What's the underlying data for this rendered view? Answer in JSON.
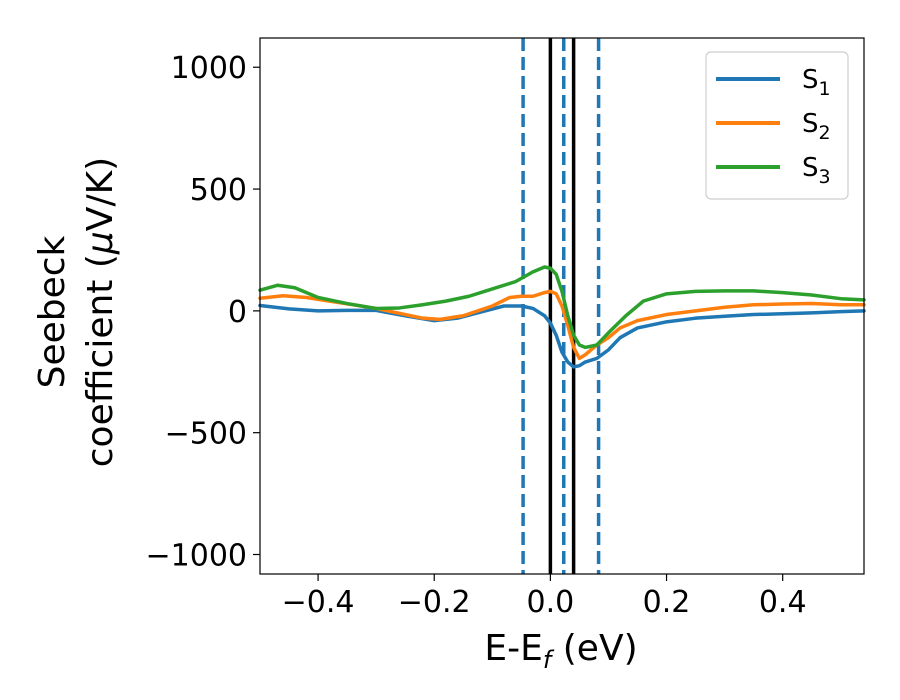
{
  "chart_data": {
    "type": "line",
    "xlabel": "E-E",
    "xlabel_sub": "f",
    "xlabel_unit": " (eV)",
    "ylabel_line1": "Seebeck",
    "ylabel_line2_pre": "coefficient  (",
    "ylabel_mu": "μ",
    "ylabel_line2_post": "V/K)",
    "xlim": [
      -0.5,
      0.54
    ],
    "ylim": [
      -1080,
      1120
    ],
    "xticks": [
      -0.4,
      -0.2,
      0.0,
      0.2,
      0.4
    ],
    "xtick_labels": [
      "−0.4",
      "−0.2",
      "0.0",
      "0.2",
      "0.4"
    ],
    "yticks": [
      -1000,
      -500,
      0,
      500,
      1000
    ],
    "ytick_labels": [
      "−1000",
      "−500",
      "0",
      "500",
      "1000"
    ],
    "grid": false,
    "legend_position": "top-right",
    "vlines_solid": [
      0.0,
      0.04
    ],
    "vlines_dashed": [
      -0.047,
      0.023,
      0.083
    ],
    "vline_solid_color": "#000000",
    "vline_dashed_color": "#1f77b4",
    "series": [
      {
        "name": "S",
        "sub": "1",
        "color": "#1f77b4",
        "points": [
          [
            -0.5,
            22
          ],
          [
            -0.45,
            8
          ],
          [
            -0.4,
            0
          ],
          [
            -0.35,
            2
          ],
          [
            -0.3,
            2
          ],
          [
            -0.25,
            -20
          ],
          [
            -0.2,
            -40
          ],
          [
            -0.16,
            -30
          ],
          [
            -0.12,
            -5
          ],
          [
            -0.08,
            20
          ],
          [
            -0.05,
            20
          ],
          [
            -0.03,
            10
          ],
          [
            -0.01,
            -20
          ],
          [
            0.0,
            -50
          ],
          [
            0.01,
            -100
          ],
          [
            0.02,
            -170
          ],
          [
            0.03,
            -210
          ],
          [
            0.04,
            -230
          ],
          [
            0.05,
            -225
          ],
          [
            0.06,
            -210
          ],
          [
            0.08,
            -195
          ],
          [
            0.1,
            -160
          ],
          [
            0.12,
            -110
          ],
          [
            0.15,
            -70
          ],
          [
            0.2,
            -45
          ],
          [
            0.25,
            -30
          ],
          [
            0.3,
            -22
          ],
          [
            0.35,
            -15
          ],
          [
            0.4,
            -12
          ],
          [
            0.45,
            -8
          ],
          [
            0.5,
            -3
          ],
          [
            0.54,
            0
          ]
        ]
      },
      {
        "name": "S",
        "sub": "2",
        "color": "#ff7f0e",
        "points": [
          [
            -0.5,
            52
          ],
          [
            -0.46,
            62
          ],
          [
            -0.42,
            55
          ],
          [
            -0.38,
            40
          ],
          [
            -0.34,
            25
          ],
          [
            -0.3,
            10
          ],
          [
            -0.26,
            -10
          ],
          [
            -0.22,
            -30
          ],
          [
            -0.19,
            -35
          ],
          [
            -0.15,
            -20
          ],
          [
            -0.1,
            20
          ],
          [
            -0.07,
            55
          ],
          [
            -0.05,
            60
          ],
          [
            -0.03,
            60
          ],
          [
            -0.01,
            75
          ],
          [
            0.0,
            80
          ],
          [
            0.01,
            70
          ],
          [
            0.02,
            20
          ],
          [
            0.03,
            -60
          ],
          [
            0.04,
            -150
          ],
          [
            0.05,
            -195
          ],
          [
            0.06,
            -180
          ],
          [
            0.08,
            -140
          ],
          [
            0.1,
            -110
          ],
          [
            0.12,
            -70
          ],
          [
            0.15,
            -40
          ],
          [
            0.2,
            -15
          ],
          [
            0.25,
            0
          ],
          [
            0.3,
            15
          ],
          [
            0.35,
            25
          ],
          [
            0.4,
            28
          ],
          [
            0.45,
            30
          ],
          [
            0.5,
            25
          ],
          [
            0.54,
            25
          ]
        ]
      },
      {
        "name": "S",
        "sub": "3",
        "color": "#2ca02c",
        "points": [
          [
            -0.5,
            85
          ],
          [
            -0.47,
            105
          ],
          [
            -0.44,
            95
          ],
          [
            -0.4,
            55
          ],
          [
            -0.35,
            30
          ],
          [
            -0.3,
            10
          ],
          [
            -0.26,
            12
          ],
          [
            -0.22,
            25
          ],
          [
            -0.18,
            40
          ],
          [
            -0.14,
            60
          ],
          [
            -0.1,
            90
          ],
          [
            -0.06,
            120
          ],
          [
            -0.03,
            160
          ],
          [
            -0.01,
            180
          ],
          [
            0.0,
            175
          ],
          [
            0.01,
            150
          ],
          [
            0.02,
            80
          ],
          [
            0.03,
            -20
          ],
          [
            0.04,
            -100
          ],
          [
            0.05,
            -140
          ],
          [
            0.06,
            -150
          ],
          [
            0.08,
            -140
          ],
          [
            0.1,
            -90
          ],
          [
            0.13,
            -20
          ],
          [
            0.16,
            40
          ],
          [
            0.2,
            70
          ],
          [
            0.25,
            80
          ],
          [
            0.3,
            82
          ],
          [
            0.35,
            82
          ],
          [
            0.4,
            75
          ],
          [
            0.45,
            65
          ],
          [
            0.5,
            50
          ],
          [
            0.54,
            45
          ]
        ]
      }
    ]
  }
}
